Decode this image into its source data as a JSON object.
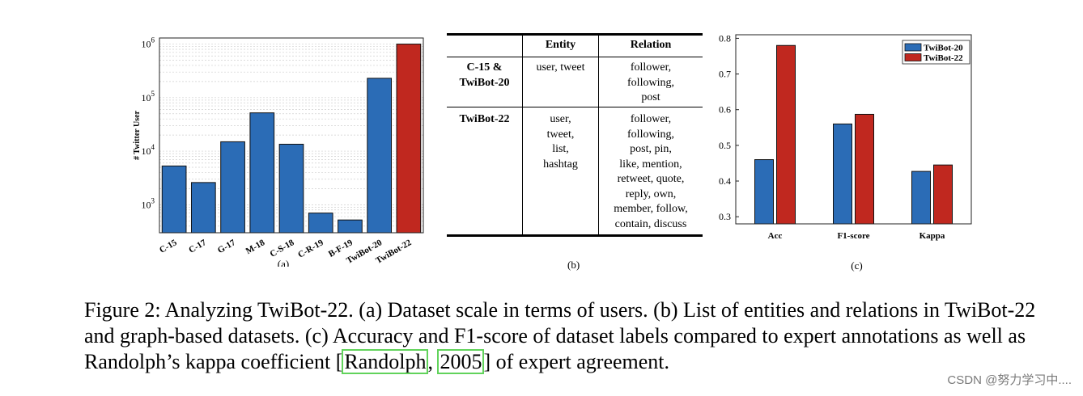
{
  "chart_data": [
    {
      "id": "a",
      "type": "bar",
      "yscale": "log",
      "ylabel": "# Twitter User",
      "ylim": [
        300,
        1300000
      ],
      "yticks": [
        {
          "value": 1000,
          "label": "10",
          "exp": "3"
        },
        {
          "value": 10000,
          "label": "10",
          "exp": "4"
        },
        {
          "value": 100000,
          "label": "10",
          "exp": "5"
        },
        {
          "value": 1000000,
          "label": "10",
          "exp": "6"
        }
      ],
      "categories": [
        "C-15",
        "C-17",
        "G-17",
        "M-18",
        "C-S-18",
        "C-R-19",
        "B-F-19",
        "TwiBot-20",
        "TwiBot-22"
      ],
      "values": [
        5300,
        2600,
        15000,
        52000,
        13500,
        700,
        520,
        230000,
        1000000
      ],
      "colors": [
        "#2b6cb6",
        "#2b6cb6",
        "#2b6cb6",
        "#2b6cb6",
        "#2b6cb6",
        "#2b6cb6",
        "#2b6cb6",
        "#2b6cb6",
        "#c0281f"
      ],
      "sublabel": "(a)"
    },
    {
      "id": "c",
      "type": "bar",
      "ylim": [
        0.28,
        0.81
      ],
      "yticks": [
        "0.3",
        "0.4",
        "0.5",
        "0.6",
        "0.7",
        "0.8"
      ],
      "categories": [
        "Acc",
        "F1-score",
        "Kappa"
      ],
      "series": [
        {
          "name": "TwiBot-20",
          "color": "#2b6cb6",
          "values": [
            0.46,
            0.56,
            0.427
          ]
        },
        {
          "name": "TwiBot-22",
          "color": "#c0281f",
          "values": [
            0.78,
            0.587,
            0.445
          ]
        }
      ],
      "legend": "top-right",
      "sublabel": "(c)"
    }
  ],
  "table": {
    "headers": [
      "Entity",
      "Relation"
    ],
    "rows": [
      {
        "dataset": [
          "C-15 &",
          "TwiBot-20"
        ],
        "entity": [
          "user, tweet"
        ],
        "relation": [
          "follower,",
          "following,",
          "post"
        ]
      },
      {
        "dataset": [
          "TwiBot-22"
        ],
        "entity": [
          "user,",
          "tweet,",
          "list,",
          "hashtag"
        ],
        "relation": [
          "follower,",
          "following,",
          "post, pin,",
          "like, mention,",
          "retweet, quote,",
          "reply, own,",
          "member, follow,",
          "contain, discuss"
        ]
      }
    ],
    "sublabel": "(b)"
  },
  "caption": {
    "before": "Figure 2: Analyzing TwiBot-22. (a) Dataset scale in terms of users. (b) List of entities and relations in TwiBot-22 and graph-based datasets. (c) Accuracy and F1-score of dataset labels compared to expert annotations as well as Randolph’s kappa coefficient [",
    "ref_author": "Randolph",
    "sep": ", ",
    "ref_year": "2005",
    "after": "] of expert agreement."
  },
  "watermark": "CSDN @努力学习中...."
}
